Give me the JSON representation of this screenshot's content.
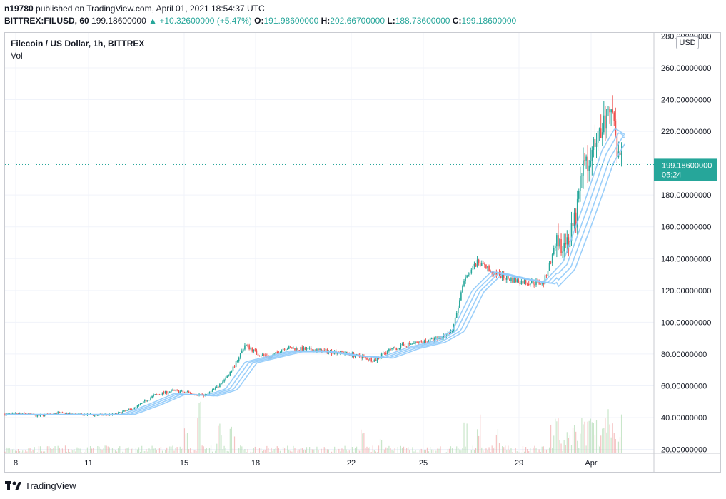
{
  "header": {
    "user": "n19780",
    "published": "published on TradingView.com, April 01, 2021 18:54:37 UTC",
    "symbol": "BITTREX:FILUSD, 60",
    "last": "199.18600000",
    "change_arrow": "▲",
    "change": "+10.32600000 (+5.47%)",
    "o_label": "O:",
    "o": "191.98600000",
    "h_label": "H:",
    "h": "202.66700000",
    "l_label": "L:",
    "l": "188.73600000",
    "c_label": "C:",
    "c": "199.18600000"
  },
  "legend": {
    "title": "Filecoin / US Dollar, 1h, BITTREX",
    "vol": "Vol"
  },
  "currency_button": "USD",
  "price_label": {
    "price": "199.18600000",
    "countdown": "05:24"
  },
  "brand": "TradingView",
  "colors": {
    "up": "#26a69a",
    "down": "#ef5350",
    "ma": "#90caf9",
    "price_line": "#26a69a",
    "grid": "#f0f3fa",
    "volume_up": "#a5d6a7",
    "volume_down": "#ef9a9a"
  },
  "chart_data": {
    "type": "candlestick",
    "grid": true,
    "y_axis": {
      "ticks": [
        20,
        40,
        60,
        80,
        100,
        120,
        140,
        160,
        180,
        200,
        220,
        240,
        260,
        280
      ],
      "tick_labels": [
        "20.00000000",
        "40.00000000",
        "60.00000000",
        "80.00000000",
        "100.00000000",
        "120.00000000",
        "140.00000000",
        "160.00000000",
        "180.00000000",
        "200.00000000",
        "220.00000000",
        "240.00000000",
        "260.00000000",
        "280.00000000"
      ],
      "range": [
        18,
        282
      ]
    },
    "x_axis": {
      "ticks": [
        "8",
        "11",
        "15",
        "18",
        "22",
        "25",
        "29",
        "Apr"
      ]
    },
    "current_price": 199.186,
    "price_path": [
      [
        0,
        42
      ],
      [
        0.03,
        42.5
      ],
      [
        0.05,
        41
      ],
      [
        0.08,
        43
      ],
      [
        0.11,
        42
      ],
      [
        0.14,
        41.5
      ],
      [
        0.17,
        42
      ],
      [
        0.2,
        46
      ],
      [
        0.23,
        54
      ],
      [
        0.26,
        57
      ],
      [
        0.29,
        55
      ],
      [
        0.31,
        54
      ],
      [
        0.33,
        60
      ],
      [
        0.35,
        70
      ],
      [
        0.37,
        86
      ],
      [
        0.39,
        80
      ],
      [
        0.41,
        78
      ],
      [
        0.43,
        84
      ],
      [
        0.46,
        83
      ],
      [
        0.49,
        82
      ],
      [
        0.52,
        81
      ],
      [
        0.55,
        78
      ],
      [
        0.57,
        76
      ],
      [
        0.59,
        82
      ],
      [
        0.62,
        86
      ],
      [
        0.65,
        88
      ],
      [
        0.67,
        90
      ],
      [
        0.69,
        95
      ],
      [
        0.71,
        130
      ],
      [
        0.73,
        138
      ],
      [
        0.75,
        132
      ],
      [
        0.77,
        128
      ],
      [
        0.79,
        126
      ],
      [
        0.81,
        125
      ],
      [
        0.83,
        125
      ],
      [
        0.85,
        150
      ],
      [
        0.87,
        152
      ],
      [
        0.88,
        165
      ],
      [
        0.89,
        200
      ],
      [
        0.9,
        195
      ],
      [
        0.91,
        215
      ],
      [
        0.92,
        228
      ],
      [
        0.935,
        225
      ],
      [
        0.95,
        199
      ]
    ],
    "ma_path": [
      [
        0,
        42
      ],
      [
        0.1,
        42
      ],
      [
        0.18,
        42
      ],
      [
        0.22,
        48
      ],
      [
        0.26,
        55
      ],
      [
        0.31,
        54
      ],
      [
        0.34,
        58
      ],
      [
        0.37,
        75
      ],
      [
        0.4,
        78
      ],
      [
        0.44,
        82
      ],
      [
        0.49,
        82
      ],
      [
        0.54,
        79
      ],
      [
        0.58,
        78
      ],
      [
        0.62,
        84
      ],
      [
        0.66,
        88
      ],
      [
        0.69,
        95
      ],
      [
        0.72,
        120
      ],
      [
        0.75,
        132
      ],
      [
        0.79,
        128
      ],
      [
        0.83,
        125
      ],
      [
        0.86,
        138
      ],
      [
        0.89,
        172
      ],
      [
        0.92,
        208
      ],
      [
        0.94,
        222
      ],
      [
        0.955,
        218
      ]
    ],
    "volume_spikes": [
      [
        0.28,
        0.55
      ],
      [
        0.3,
        0.9
      ],
      [
        0.33,
        0.75
      ],
      [
        0.35,
        0.5
      ],
      [
        0.55,
        0.45
      ],
      [
        0.58,
        0.6
      ],
      [
        0.71,
        0.5
      ],
      [
        0.73,
        0.65
      ],
      [
        0.76,
        0.4
      ],
      [
        0.85,
        0.55
      ],
      [
        0.89,
        0.6
      ],
      [
        0.93,
        0.7
      ],
      [
        0.95,
        0.75
      ]
    ]
  }
}
